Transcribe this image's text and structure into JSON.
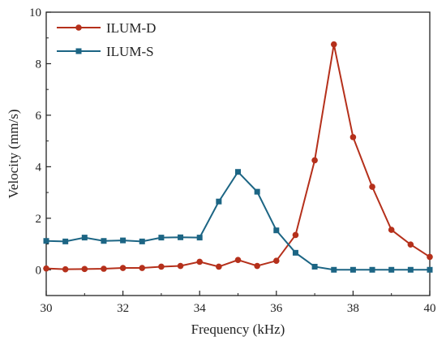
{
  "chart_data": {
    "type": "line",
    "xlabel": "Frequency (kHz)",
    "ylabel": "Velocity (mm/s)",
    "xlim": [
      30,
      40
    ],
    "ylim": [
      -1,
      10
    ],
    "x_ticks": [
      30,
      32,
      34,
      36,
      38,
      40
    ],
    "y_ticks": [
      0,
      2,
      4,
      6,
      8,
      10
    ],
    "x_tick_labels": [
      "30",
      "32",
      "34",
      "36",
      "38",
      "40"
    ],
    "y_tick_labels": [
      "0",
      "2",
      "4",
      "6",
      "8",
      "10"
    ],
    "grid": false,
    "legend_position": "top-left",
    "x": [
      30,
      30.5,
      31,
      31.5,
      32,
      32.5,
      33,
      33.5,
      34,
      34.5,
      35,
      35.5,
      36,
      36.5,
      37,
      37.5,
      38,
      38.5,
      39,
      39.5,
      40
    ],
    "series": [
      {
        "name": "ILUM-D",
        "color": "#b5301b",
        "marker": "circle",
        "values": [
          0.05,
          0.02,
          0.03,
          0.04,
          0.07,
          0.07,
          0.12,
          0.15,
          0.31,
          0.12,
          0.38,
          0.15,
          0.35,
          1.35,
          4.25,
          8.75,
          5.15,
          3.22,
          1.55,
          0.98,
          0.5
        ]
      },
      {
        "name": "ILUM-S",
        "color": "#1c6584",
        "marker": "square",
        "values": [
          1.12,
          1.1,
          1.25,
          1.12,
          1.14,
          1.1,
          1.25,
          1.26,
          1.25,
          2.65,
          3.8,
          3.03,
          1.53,
          0.66,
          0.12,
          0.0,
          0.0,
          0.0,
          0.0,
          0.0,
          0.0
        ]
      }
    ]
  }
}
